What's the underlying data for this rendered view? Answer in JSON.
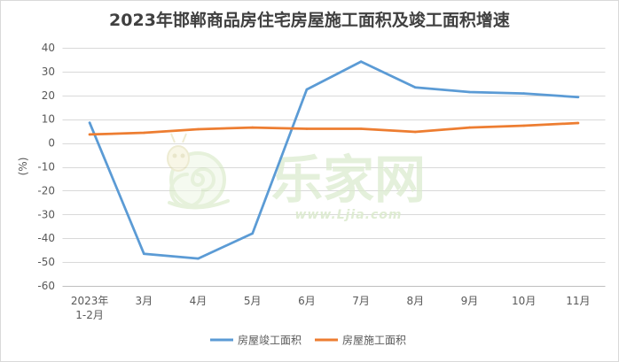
{
  "chart_data": {
    "type": "line",
    "title": "2023年邯郸商品房住宅房屋施工面积及竣工面积增速",
    "xlabel": "",
    "ylabel": "(%)",
    "categories": [
      "2023年\n1-2月",
      "3月",
      "4月",
      "5月",
      "6月",
      "7月",
      "8月",
      "9月",
      "10月",
      "11月"
    ],
    "ylim": [
      -60,
      40
    ],
    "yticks": [
      40,
      30,
      20,
      10,
      0,
      -10,
      -20,
      -30,
      -40,
      -50,
      -60
    ],
    "grid": true,
    "legend": "bottom",
    "series": [
      {
        "name": "房屋竣工面积",
        "color": "#5B9BD5",
        "values": [
          8.5,
          -46.5,
          -48.5,
          -38.0,
          22.5,
          34.2,
          23.4,
          21.4,
          20.8,
          19.3
        ]
      },
      {
        "name": "房屋施工面积",
        "color": "#ED7D31",
        "values": [
          3.6,
          4.3,
          5.8,
          6.5,
          6.0,
          6.0,
          4.7,
          6.5,
          7.3,
          8.4
        ]
      }
    ]
  },
  "watermark": {
    "brand": "乐家网",
    "url": "www.Ljia.com"
  }
}
